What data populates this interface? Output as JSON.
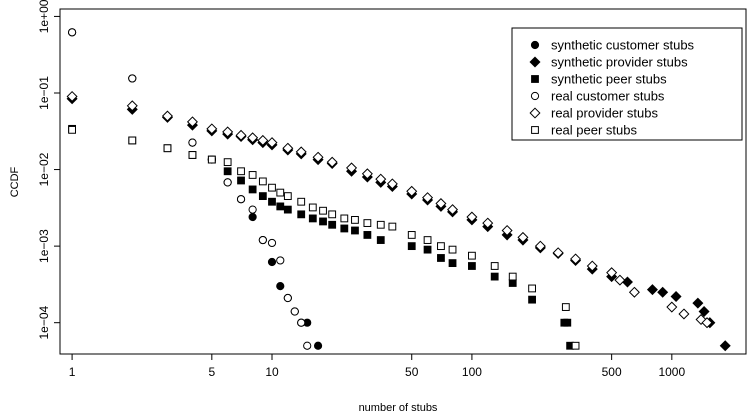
{
  "chart_data": {
    "type": "scatter",
    "xlabel": "number of stubs",
    "ylabel": "CCDF",
    "x_scale": "log",
    "y_scale": "log",
    "xlim": [
      0.87,
      2350
    ],
    "ylim": [
      3.9e-05,
      1.25
    ],
    "grid": false,
    "legend_position": "top-right",
    "x_ticks": [
      {
        "value": 1,
        "label": "1"
      },
      {
        "value": 5,
        "label": "5"
      },
      {
        "value": 10,
        "label": "10"
      },
      {
        "value": 50,
        "label": "50"
      },
      {
        "value": 100,
        "label": "100"
      },
      {
        "value": 500,
        "label": "500"
      },
      {
        "value": 1000,
        "label": "1000"
      }
    ],
    "y_ticks": [
      {
        "value": 0.0001,
        "label": "1e−04"
      },
      {
        "value": 0.001,
        "label": "1e−03"
      },
      {
        "value": 0.01,
        "label": "1e−02"
      },
      {
        "value": 0.1,
        "label": "1e−01"
      },
      {
        "value": 1,
        "label": "1e+00"
      }
    ],
    "series": [
      {
        "name": "synthetic customer stubs",
        "marker": "circle-filled",
        "points": [
          [
            1,
            0.62
          ],
          [
            2,
            0.155
          ],
          [
            4,
            0.0225
          ],
          [
            5,
            0.0135
          ],
          [
            6,
            0.0068
          ],
          [
            7,
            0.0041
          ],
          [
            8,
            0.0024
          ],
          [
            9,
            0.0012
          ],
          [
            10,
            0.00062
          ],
          [
            11,
            0.0003
          ],
          [
            12,
            0.00021
          ],
          [
            13,
            0.00014
          ],
          [
            14,
            0.0001
          ],
          [
            15,
            0.0001
          ],
          [
            17,
            5e-05
          ]
        ]
      },
      {
        "name": "synthetic provider stubs",
        "marker": "diamond-filled",
        "points": [
          [
            1,
            0.084
          ],
          [
            2,
            0.061
          ],
          [
            3,
            0.048
          ],
          [
            4,
            0.038
          ],
          [
            5,
            0.032
          ],
          [
            6,
            0.029
          ],
          [
            7,
            0.027
          ],
          [
            8,
            0.0245
          ],
          [
            9,
            0.0225
          ],
          [
            10,
            0.021
          ],
          [
            12,
            0.018
          ],
          [
            14,
            0.016
          ],
          [
            17,
            0.0135
          ],
          [
            20,
            0.012
          ],
          [
            25,
            0.0095
          ],
          [
            30,
            0.008
          ],
          [
            35,
            0.0068
          ],
          [
            40,
            0.006
          ],
          [
            50,
            0.0048
          ],
          [
            60,
            0.004
          ],
          [
            70,
            0.0033
          ],
          [
            80,
            0.0028
          ],
          [
            100,
            0.0022
          ],
          [
            120,
            0.0018
          ],
          [
            150,
            0.0014
          ],
          [
            180,
            0.0012
          ],
          [
            220,
            0.00095
          ],
          [
            270,
            0.0008
          ],
          [
            330,
            0.00065
          ],
          [
            400,
            0.0005
          ],
          [
            500,
            0.0004
          ],
          [
            600,
            0.00034
          ],
          [
            800,
            0.00027
          ],
          [
            900,
            0.00025
          ],
          [
            1050,
            0.00022
          ],
          [
            1350,
            0.00018
          ],
          [
            1450,
            0.00014
          ],
          [
            1550,
            0.0001
          ],
          [
            1850,
            5e-05
          ]
        ]
      },
      {
        "name": "synthetic peer stubs",
        "marker": "square-filled",
        "points": [
          [
            1,
            0.034
          ],
          [
            2,
            0.024
          ],
          [
            3,
            0.019
          ],
          [
            4,
            0.0155
          ],
          [
            5,
            0.0135
          ],
          [
            6,
            0.0095
          ],
          [
            7,
            0.0072
          ],
          [
            8,
            0.0055
          ],
          [
            9,
            0.0045
          ],
          [
            10,
            0.0038
          ],
          [
            11,
            0.0033
          ],
          [
            12,
            0.003
          ],
          [
            14,
            0.0026
          ],
          [
            16,
            0.0023
          ],
          [
            18,
            0.0021
          ],
          [
            20,
            0.0019
          ],
          [
            23,
            0.0017
          ],
          [
            26,
            0.0016
          ],
          [
            30,
            0.0014
          ],
          [
            35,
            0.0012
          ],
          [
            50,
            0.001
          ],
          [
            60,
            0.0009
          ],
          [
            70,
            0.0007
          ],
          [
            80,
            0.0006
          ],
          [
            100,
            0.00055
          ],
          [
            130,
            0.0004
          ],
          [
            160,
            0.00033
          ],
          [
            200,
            0.0002
          ],
          [
            290,
            0.0001
          ],
          [
            300,
            0.0001
          ],
          [
            310,
            5e-05
          ]
        ]
      },
      {
        "name": "real customer stubs",
        "marker": "circle-open",
        "points": [
          [
            1,
            0.62
          ],
          [
            2,
            0.155
          ],
          [
            4,
            0.0225
          ],
          [
            5,
            0.0135
          ],
          [
            6,
            0.0068
          ],
          [
            7,
            0.0041
          ],
          [
            8,
            0.003
          ],
          [
            9,
            0.0012
          ],
          [
            10,
            0.0011
          ],
          [
            11,
            0.00065
          ],
          [
            12,
            0.00021
          ],
          [
            13,
            0.00014
          ],
          [
            14,
            0.0001
          ],
          [
            15,
            5e-05
          ]
        ]
      },
      {
        "name": "real provider stubs",
        "marker": "diamond-open",
        "points": [
          [
            1,
            0.09
          ],
          [
            2,
            0.068
          ],
          [
            3,
            0.05
          ],
          [
            4,
            0.042
          ],
          [
            5,
            0.034
          ],
          [
            6,
            0.031
          ],
          [
            7,
            0.028
          ],
          [
            8,
            0.026
          ],
          [
            9,
            0.024
          ],
          [
            10,
            0.0225
          ],
          [
            12,
            0.019
          ],
          [
            14,
            0.017
          ],
          [
            17,
            0.0145
          ],
          [
            20,
            0.0125
          ],
          [
            25,
            0.0105
          ],
          [
            30,
            0.0088
          ],
          [
            35,
            0.0075
          ],
          [
            40,
            0.0065
          ],
          [
            50,
            0.0052
          ],
          [
            60,
            0.0043
          ],
          [
            70,
            0.0036
          ],
          [
            80,
            0.003
          ],
          [
            100,
            0.0024
          ],
          [
            120,
            0.002
          ],
          [
            150,
            0.0016
          ],
          [
            180,
            0.0013
          ],
          [
            220,
            0.001
          ],
          [
            270,
            0.00082
          ],
          [
            330,
            0.00068
          ],
          [
            400,
            0.00055
          ],
          [
            500,
            0.00045
          ],
          [
            550,
            0.00036
          ],
          [
            650,
            0.00025
          ],
          [
            1000,
            0.00016
          ],
          [
            1150,
            0.00013
          ],
          [
            1400,
            0.00011
          ],
          [
            1500,
            0.0001
          ]
        ]
      },
      {
        "name": "real peer stubs",
        "marker": "square-open",
        "points": [
          [
            1,
            0.033
          ],
          [
            2,
            0.024
          ],
          [
            3,
            0.019
          ],
          [
            4,
            0.0155
          ],
          [
            5,
            0.0135
          ],
          [
            6,
            0.0125
          ],
          [
            7,
            0.0095
          ],
          [
            8,
            0.0085
          ],
          [
            9,
            0.007
          ],
          [
            10,
            0.0058
          ],
          [
            11,
            0.005
          ],
          [
            12,
            0.0045
          ],
          [
            14,
            0.0038
          ],
          [
            16,
            0.0032
          ],
          [
            18,
            0.0029
          ],
          [
            20,
            0.0026
          ],
          [
            23,
            0.0023
          ],
          [
            26,
            0.0022
          ],
          [
            30,
            0.002
          ],
          [
            35,
            0.0019
          ],
          [
            40,
            0.0018
          ],
          [
            50,
            0.0014
          ],
          [
            60,
            0.0012
          ],
          [
            70,
            0.001
          ],
          [
            80,
            0.0009
          ],
          [
            100,
            0.00075
          ],
          [
            130,
            0.00055
          ],
          [
            160,
            0.0004
          ],
          [
            200,
            0.00028
          ],
          [
            295,
            0.00016
          ],
          [
            330,
            5e-05
          ]
        ]
      }
    ]
  }
}
